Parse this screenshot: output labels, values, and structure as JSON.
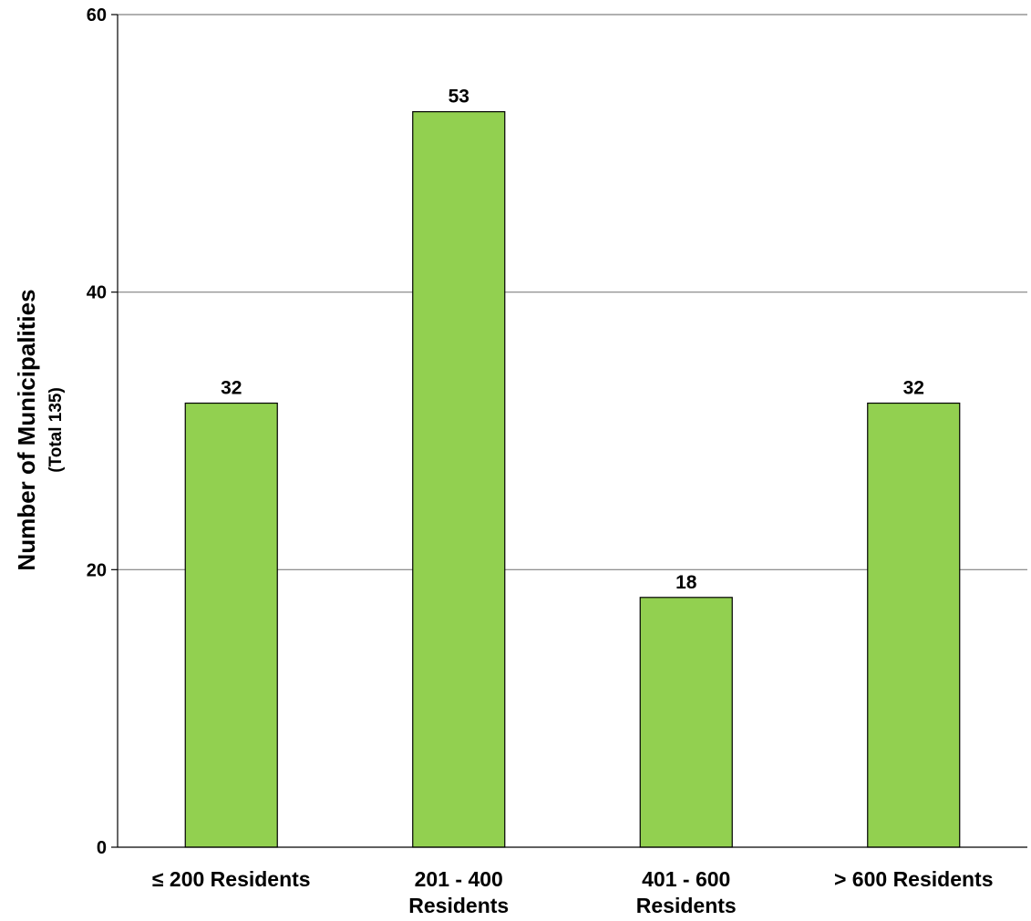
{
  "chart_data": {
    "type": "bar",
    "categories": [
      [
        "≤ 200 Residents"
      ],
      [
        "201 - 400",
        "Residents"
      ],
      [
        "401 - 600",
        "Residents"
      ],
      [
        "> 600 Residents"
      ]
    ],
    "values": [
      32,
      53,
      18,
      32
    ],
    "data_labels": [
      "32",
      "53",
      "18",
      "32"
    ],
    "ylabel": "Number of Municipalities",
    "ylabel_sub": "(Total 135)",
    "ylim": [
      0,
      60
    ],
    "yticks": [
      0,
      20,
      40,
      60
    ],
    "ytick_labels": [
      "0",
      "20",
      "40",
      "60"
    ],
    "grid": "horizontal",
    "legend": "none",
    "colors": {
      "bar_fill": "#92d050",
      "bar_stroke": "#000000",
      "grid": "#808080"
    }
  }
}
